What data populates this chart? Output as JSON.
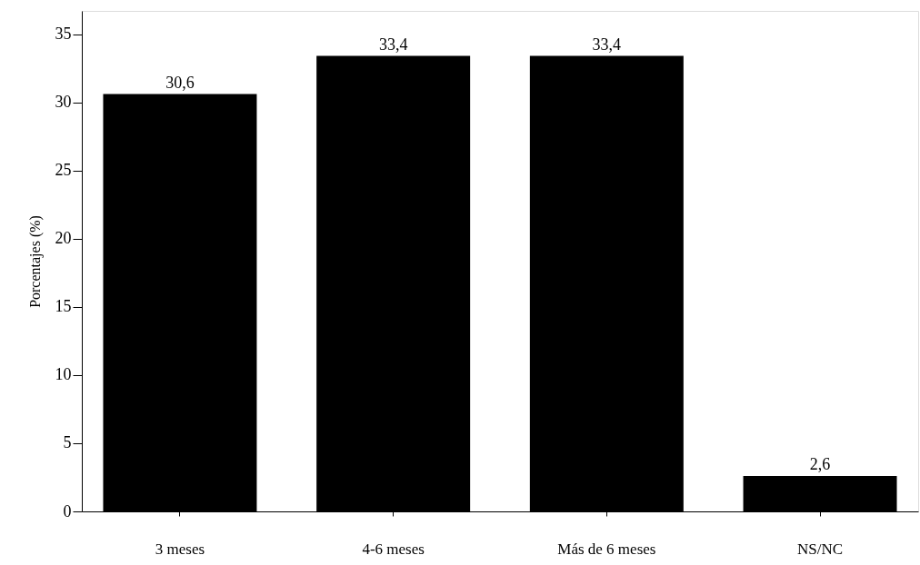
{
  "chart_data": {
    "type": "bar",
    "ylabel": "Porcentajes (%)",
    "categories": [
      "3 meses",
      "4-6 meses",
      "Más de 6 meses",
      "NS/NC"
    ],
    "values": [
      30.6,
      33.4,
      33.4,
      2.6
    ],
    "value_labels": [
      "30,6",
      "33,4",
      "33,4",
      "2,6"
    ],
    "color": "#000000",
    "ylim": [
      0,
      36.7
    ],
    "yticks": [
      0,
      5,
      10,
      15,
      20,
      25,
      30,
      35
    ],
    "grid": false
  }
}
